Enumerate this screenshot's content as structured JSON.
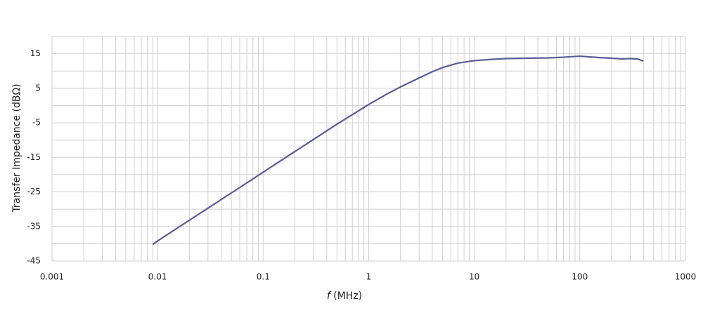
{
  "chart_data": {
    "type": "line",
    "y_label": "Transfer Impedance (dBΩ)",
    "x_label": {
      "symbol": "f",
      "unit": "(MHz)"
    },
    "x": [
      0.009,
      0.01,
      0.02,
      0.05,
      0.1,
      0.2,
      0.5,
      1,
      1.5,
      2,
      3,
      4,
      5,
      7,
      10,
      15,
      20,
      30,
      50,
      70,
      100,
      150,
      200,
      250,
      300,
      350,
      400
    ],
    "series": [
      {
        "name": "Transfer Impedance",
        "color": "#5b5b9a",
        "values": [
          -40.2,
          -39.2,
          -33.2,
          -25.3,
          -19.3,
          -13.3,
          -5.4,
          0.3,
          3.4,
          5.4,
          8,
          9.8,
          11,
          12.3,
          13,
          13.4,
          13.6,
          13.7,
          13.8,
          14,
          14.3,
          13.9,
          13.7,
          13.5,
          13.6,
          13.5,
          12.9
        ]
      }
    ],
    "xlim": [
      0.001,
      1000
    ],
    "xticks": [
      0.001,
      0.01,
      0.1,
      1,
      10,
      100,
      1000
    ],
    "xscale": "log",
    "ylim": [
      -45,
      20
    ],
    "yticks": [
      15,
      5,
      -5,
      -15,
      -25,
      -35,
      -45
    ],
    "grid": true,
    "minor_grid": true
  }
}
